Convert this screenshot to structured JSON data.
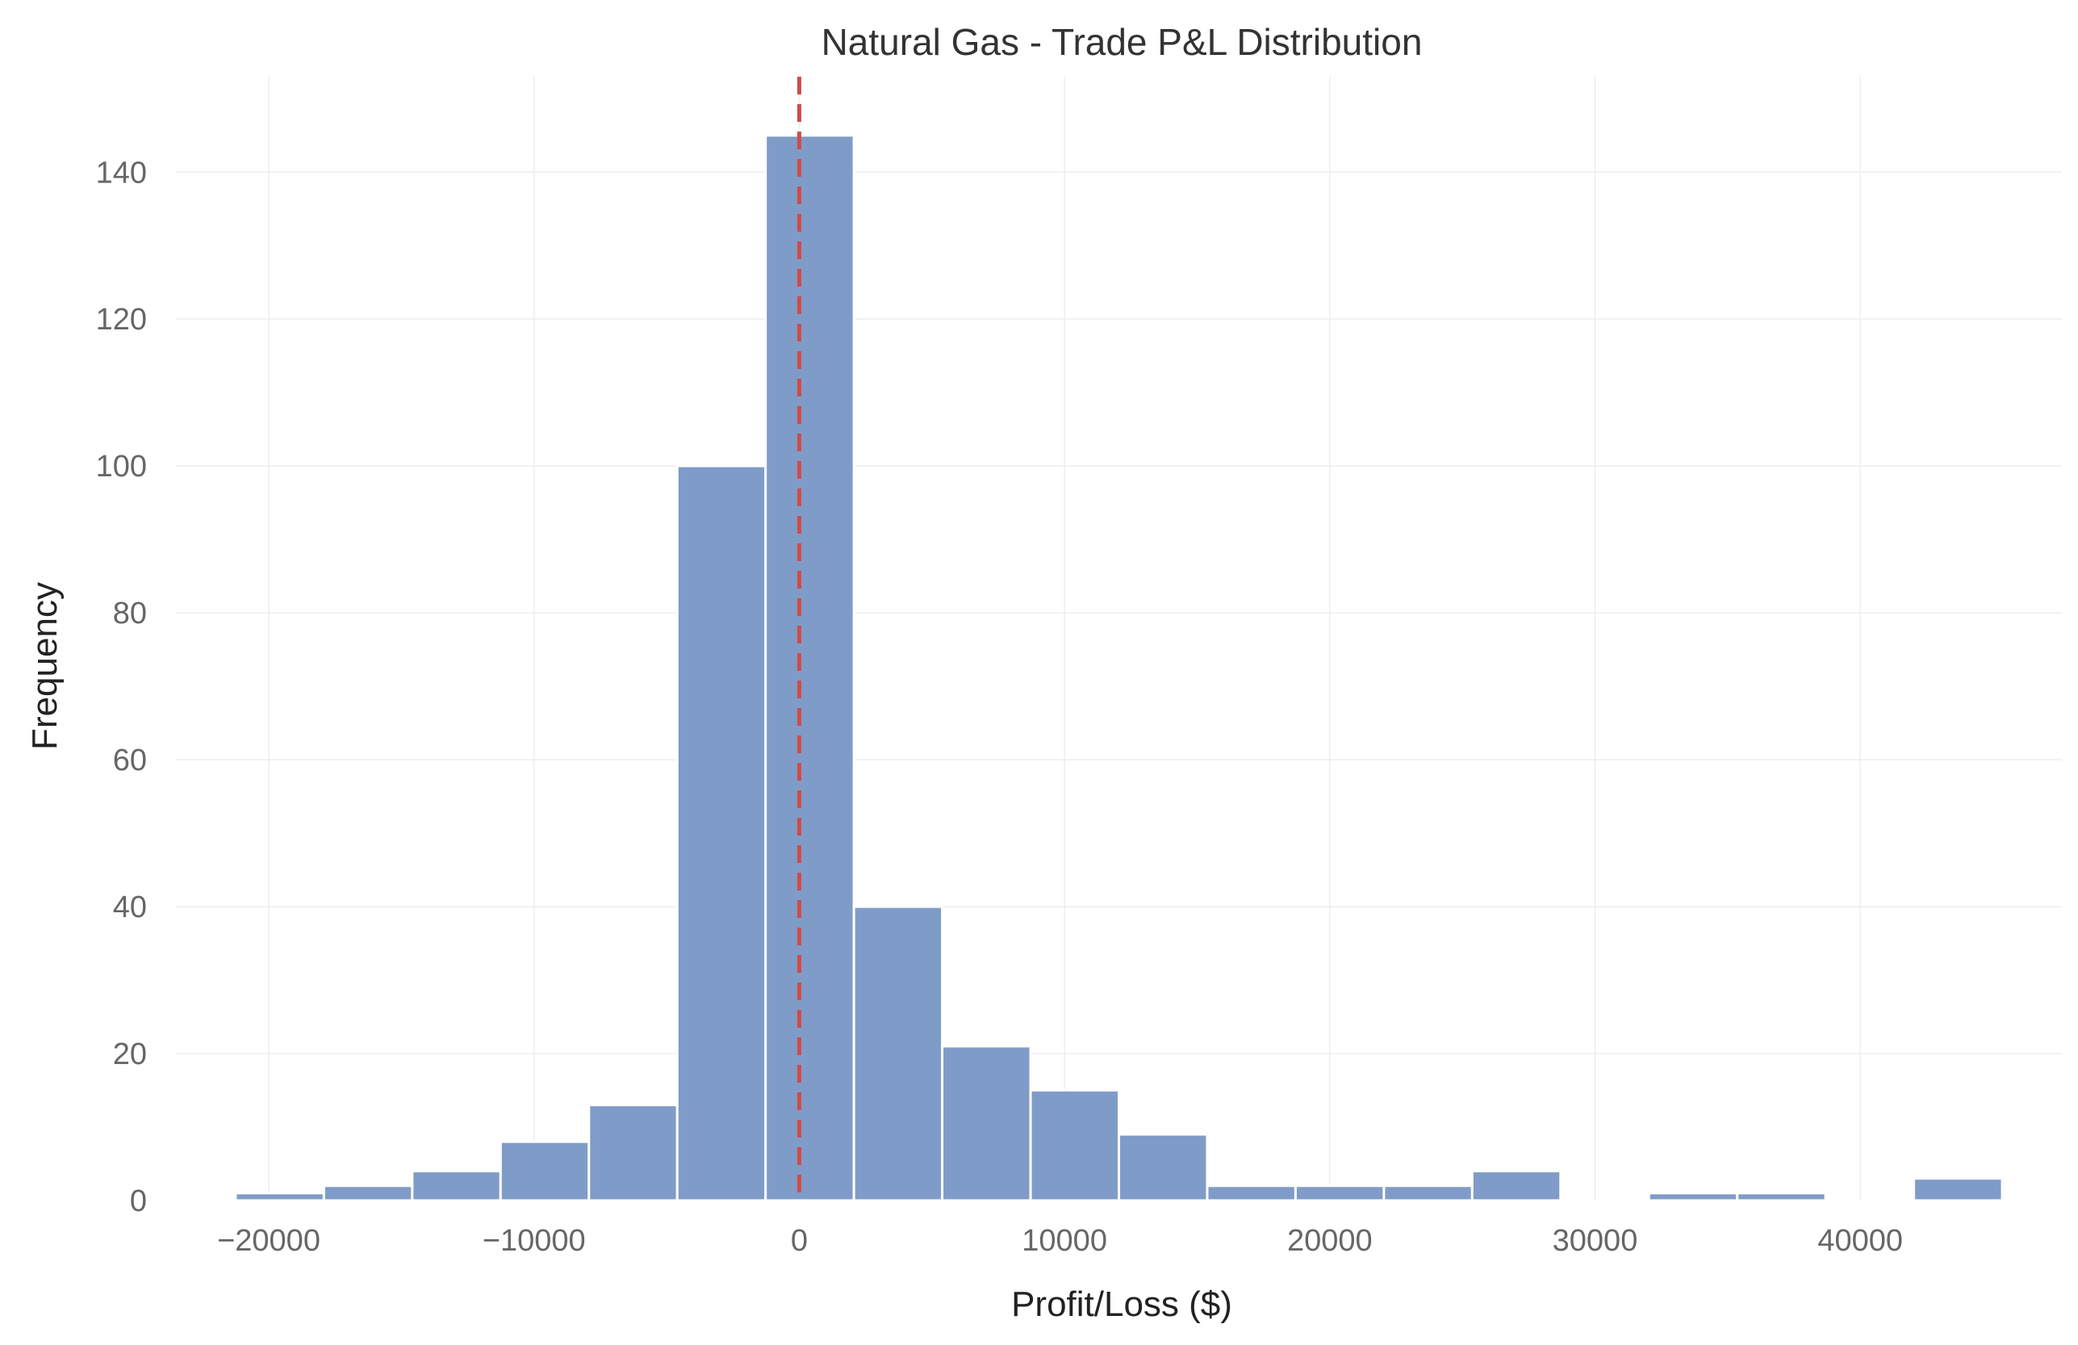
{
  "chart_data": {
    "type": "bar",
    "title": "Natural Gas - Trade P&L Distribution",
    "xlabel": "Profit/Loss ($)",
    "ylabel": "Frequency",
    "xlim": [
      -23500,
      47600
    ],
    "ylim": [
      0,
      153
    ],
    "xticks": [
      -20000,
      -10000,
      0,
      10000,
      20000,
      30000,
      40000
    ],
    "xtick_labels": [
      "−20000",
      "−10000",
      "0",
      "10000",
      "20000",
      "30000",
      "40000"
    ],
    "yticks": [
      0,
      20,
      40,
      60,
      80,
      100,
      120,
      140
    ],
    "ytick_labels": [
      "0",
      "20",
      "40",
      "60",
      "80",
      "100",
      "120",
      "140"
    ],
    "grid": true,
    "bin_edges": [
      -21250,
      -17920,
      -14590,
      -11260,
      -7930,
      -4600,
      -1270,
      2060,
      5390,
      8720,
      12050,
      15380,
      18710,
      22040,
      25370,
      28700,
      32030,
      35360,
      38690,
      42020,
      45350
    ],
    "values": [
      1,
      2,
      4,
      8,
      13,
      100,
      145,
      40,
      21,
      15,
      9,
      2,
      2,
      2,
      4,
      0,
      1,
      1,
      0,
      3
    ],
    "reference_line": {
      "x": 0,
      "style": "dashed"
    },
    "colors": {
      "bar": "#7f9cc8",
      "reference_line": "#cf4b4b"
    }
  }
}
